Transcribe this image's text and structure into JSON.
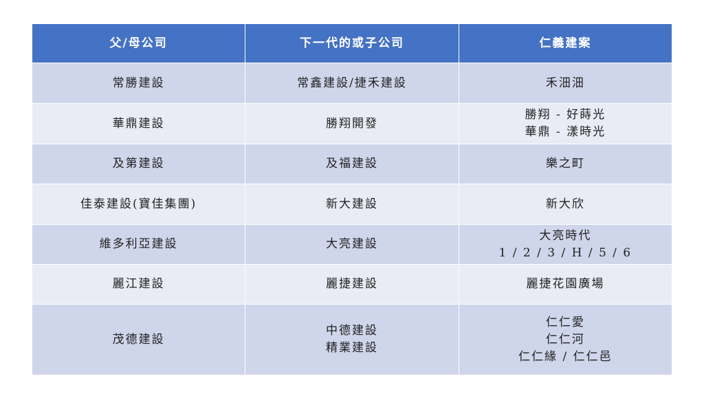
{
  "headers": [
    "父/母公司",
    "下一代的或子公司",
    "仁義建案"
  ],
  "rows": [
    {
      "parent": "常勝建設",
      "child": [
        "常鑫建設/捷禾建設"
      ],
      "projects": [
        "禾沺沺"
      ]
    },
    {
      "parent": "華鼎建設",
      "child": [
        "勝翔開發"
      ],
      "projects": [
        "勝翔 - 好蒔光",
        "華鼎 - 漾時光"
      ]
    },
    {
      "parent": "及第建設",
      "child": [
        "及福建設"
      ],
      "projects": [
        "樂之町"
      ]
    },
    {
      "parent": "佳泰建設(寶佳集團)",
      "child": [
        "新大建設"
      ],
      "projects": [
        "新大欣"
      ]
    },
    {
      "parent": "維多利亞建設",
      "child": [
        "大亮建設"
      ],
      "projects": [
        "大亮時代",
        "1 / 2 / 3 / H / 5 / 6"
      ]
    },
    {
      "parent": "麗江建設",
      "child": [
        "麗捷建設"
      ],
      "projects": [
        "麗捷花園廣場"
      ]
    },
    {
      "parent": "茂德建設",
      "child": [
        "中德建設",
        "精業建設"
      ],
      "projects": [
        "仁仁愛",
        "仁仁河",
        "仁仁緣 / 仁仁邑"
      ]
    }
  ],
  "colors": {
    "header": "#4472c4",
    "row_dark": "#cfd5ea",
    "row_light": "#e9ebf5"
  }
}
